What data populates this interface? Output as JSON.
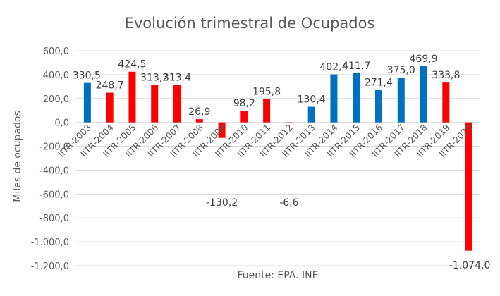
{
  "chart_data": {
    "type": "bar",
    "title": "Evolución trimestral de Ocupados",
    "xlabel": "Fuente: EPA. INE",
    "ylabel": "Miles de ocupados",
    "ylim": [
      -1200,
      600
    ],
    "yticks": [
      600,
      400,
      200,
      0,
      -200,
      -400,
      -600,
      -800,
      -1000,
      -1200
    ],
    "ytick_labels": [
      "600,0",
      "400,0",
      "200,0",
      "0,0",
      "-200,0",
      "-400,0",
      "-600,0",
      "-800,0",
      "-1.000,0",
      "-1.200,0"
    ],
    "grid": true,
    "categories": [
      "IITR-2003",
      "IITR-2004",
      "IITR-2005",
      "IITR-2006",
      "IITR-2007",
      "IITR-2008",
      "IITR-2009",
      "IITR-2010",
      "IITR-2011",
      "IITR-2012",
      "IITR-2013",
      "IITR-2014",
      "IITR-2015",
      "IITR-2016",
      "IITR-2017",
      "IITR-2018",
      "IITR-2019",
      "IITR-2020"
    ],
    "values": [
      330.5,
      248.7,
      424.5,
      313.2,
      313.4,
      26.9,
      -130.2,
      98.2,
      195.8,
      -6.6,
      130.4,
      402.4,
      411.7,
      271.4,
      375.0,
      469.9,
      333.8,
      -1074.0
    ],
    "value_labels": [
      "330,5",
      "248,7",
      "424,5",
      "313,2",
      "313,4",
      "26,9",
      "-130,2",
      "98,2",
      "195,8",
      "-6,6",
      "130,4",
      "402,4",
      "411,7",
      "271,4",
      "375,0",
      "469,9",
      "333,8",
      "-1.074,0"
    ],
    "bar_colors": [
      "#0070C0",
      "#FF0000",
      "#FF0000",
      "#FF0000",
      "#FF0000",
      "#FF0000",
      "#FF0000",
      "#FF0000",
      "#FF0000",
      "#FF0000",
      "#0070C0",
      "#0070C0",
      "#0070C0",
      "#0070C0",
      "#0070C0",
      "#0070C0",
      "#FF0000",
      "#FF0000"
    ]
  }
}
